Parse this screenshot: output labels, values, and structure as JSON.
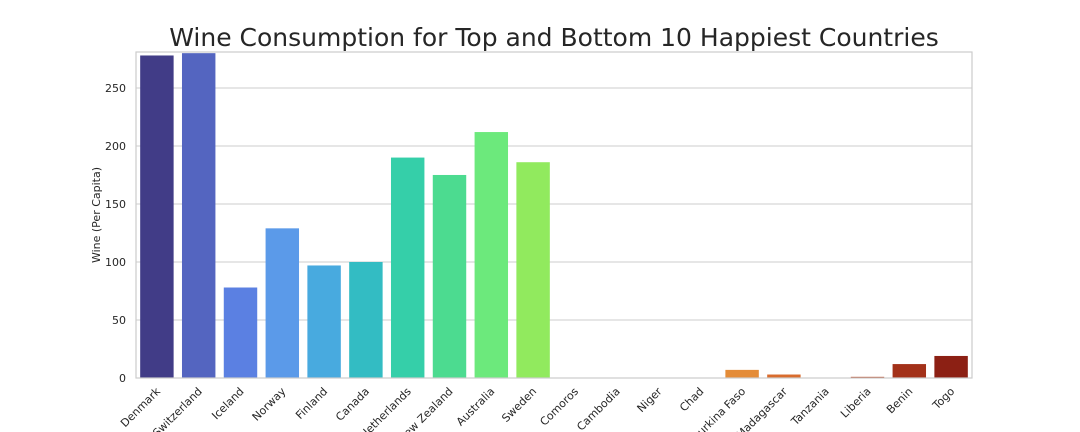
{
  "chart_data": {
    "type": "bar",
    "title": "Wine Consumption for Top and Bottom 10 Happiest Countries",
    "xlabel": "",
    "ylabel": "Wine (Per Capita)",
    "ylim": [
      0,
      281
    ],
    "yticks": [
      0,
      50,
      100,
      150,
      200,
      250
    ],
    "grid": true,
    "categories": [
      "Denmark",
      "Switzerland",
      "Iceland",
      "Norway",
      "Finland",
      "Canada",
      "Netherlands",
      "New Zealand",
      "Australia",
      "Sweden",
      "Comoros",
      "Cambodia",
      "Niger",
      "Chad",
      "Burkina Faso",
      "Madagascar",
      "Tanzania",
      "Liberia",
      "Benin",
      "Togo"
    ],
    "values": [
      278,
      280,
      78,
      129,
      97,
      100,
      190,
      175,
      212,
      186,
      0,
      0,
      0,
      0,
      7,
      3,
      0,
      1,
      12,
      19
    ],
    "colors": [
      "#413c87",
      "#5465c0",
      "#5b80e2",
      "#5b9ae9",
      "#48aadf",
      "#33bcc3",
      "#35cfa9",
      "#4cdb90",
      "#6ce97c",
      "#91ea5e",
      "#c8e346",
      "#e0d33d",
      "#ecbc37",
      "#f0a332",
      "#e48c38",
      "#d96c2e",
      "#c95425",
      "#b4401c",
      "#a33119",
      "#8c2014"
    ]
  }
}
